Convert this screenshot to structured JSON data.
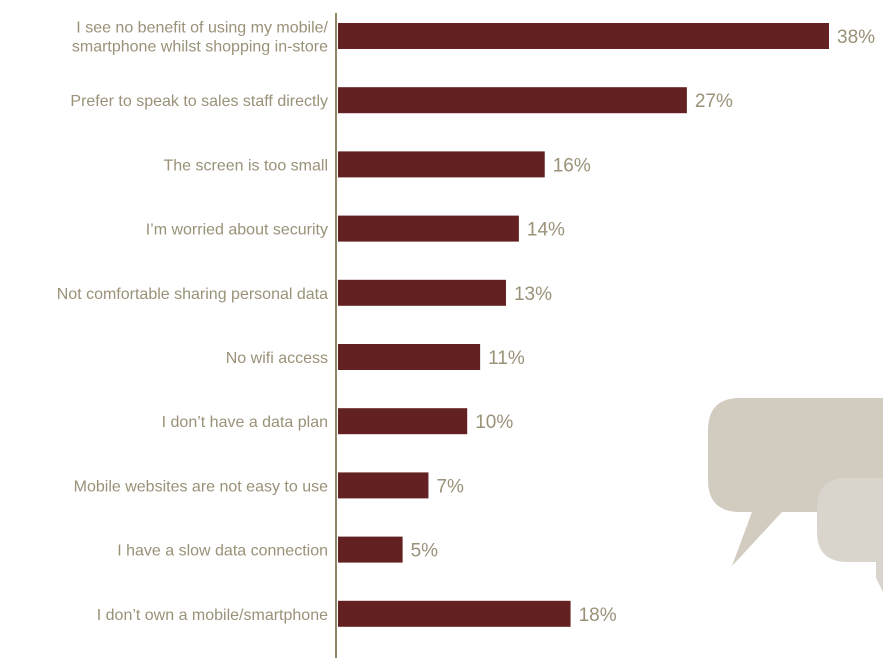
{
  "colors": {
    "bar": "#642121",
    "axis": "#8f8766",
    "text": "#9a9178",
    "bubble_back": "#d2ccc0",
    "bubble_front": "#d9d5cc"
  },
  "icons": [
    "speech-bubbles-icon"
  ],
  "chart_data": {
    "type": "bar",
    "orientation": "horizontal",
    "title": "",
    "xlabel": "",
    "ylabel": "",
    "categories": [
      [
        "I see no benefit of using my mobile/",
        "smartphone whilst shopping in-store"
      ],
      [
        "Prefer to speak to sales staff directly"
      ],
      [
        "The screen is too small"
      ],
      [
        "I’m worried about security"
      ],
      [
        "Not comfortable sharing personal data"
      ],
      [
        "No wifi access"
      ],
      [
        "I don’t have a data plan"
      ],
      [
        "Mobile websites are not easy to use"
      ],
      [
        "I have a slow data connection"
      ],
      [
        "I don’t own a mobile/smartphone"
      ]
    ],
    "values": [
      38,
      27,
      16,
      14,
      13,
      11,
      10,
      7,
      5,
      18
    ],
    "value_labels": [
      "38%",
      "27%",
      "16%",
      "14%",
      "13%",
      "11%",
      "10%",
      "7%",
      "5%",
      "18%"
    ],
    "unit": "%",
    "xlim": [
      0,
      38
    ],
    "grid": false,
    "legend": "none"
  }
}
